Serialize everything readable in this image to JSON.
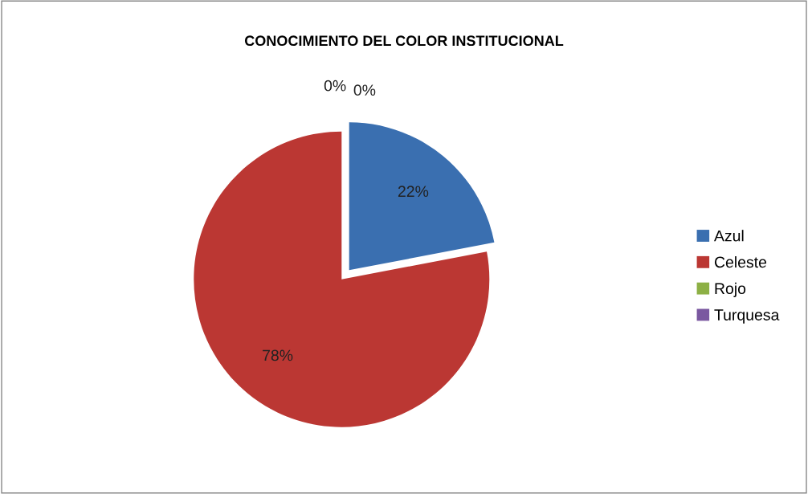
{
  "chart_data": {
    "type": "pie",
    "title": "CONOCIMIENTO DEL COLOR INSTITUCIONAL",
    "categories": [
      "Azul",
      "Celeste",
      "Rojo",
      "Turquesa"
    ],
    "values": [
      22,
      78,
      0,
      0
    ],
    "colors": [
      "#3a6fb0",
      "#bb3733",
      "#8db045",
      "#7a58a0"
    ],
    "value_labels": [
      "22%",
      "78%",
      "0%",
      "0%"
    ],
    "legend": "right"
  }
}
